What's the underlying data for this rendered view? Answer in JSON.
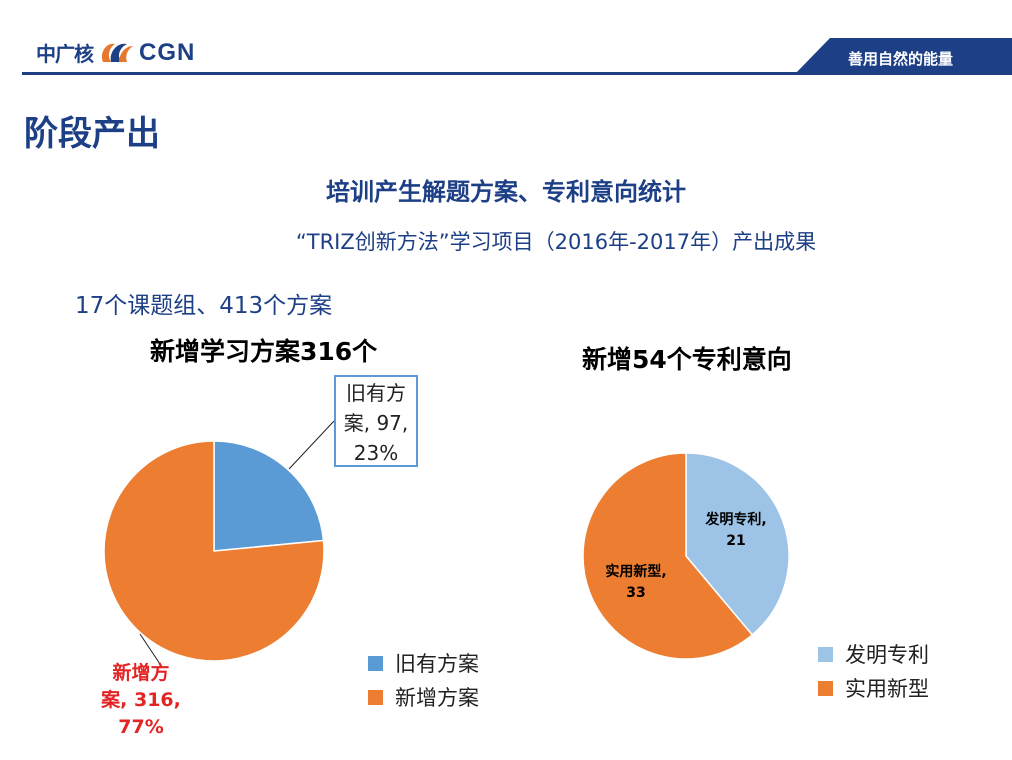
{
  "header": {
    "logo_cn": "中广核",
    "logo_en": "CGN",
    "slogan": "善用自然的能量",
    "colors": {
      "brand": "#1d3f86",
      "bar": "#1d3f86"
    }
  },
  "page_title": "阶段产出",
  "main_title": "培训产生解题方案、专利意向统计",
  "sub_title": "“TRIZ创新方法”学习项目（2016年-2017年）产出成果",
  "summary": "17个课题组、413个方案",
  "chart_data": [
    {
      "type": "pie",
      "title": "新增学习方案316个",
      "categories": [
        "旧有方案",
        "新增方案"
      ],
      "values": [
        97,
        316
      ],
      "percents": [
        23,
        77
      ],
      "colors": [
        "#5b9bd5",
        "#ed7d31"
      ],
      "legend": "right",
      "data_labels": [
        {
          "line1": "旧有方",
          "line2": "案, 97,",
          "line3": "23%"
        },
        {
          "line1": "新增方",
          "line2": "案, 316,",
          "line3": "77%"
        }
      ]
    },
    {
      "type": "pie",
      "title": "新增54个专利意向",
      "categories": [
        "发明专利",
        "实用新型"
      ],
      "values": [
        21,
        33
      ],
      "colors": [
        "#9dc3e6",
        "#ed7d31"
      ],
      "legend": "bottom-right",
      "data_labels": [
        {
          "line1": "发明专利,",
          "line2": "21"
        },
        {
          "line1": "实用新型,",
          "line2": "33"
        }
      ]
    }
  ]
}
